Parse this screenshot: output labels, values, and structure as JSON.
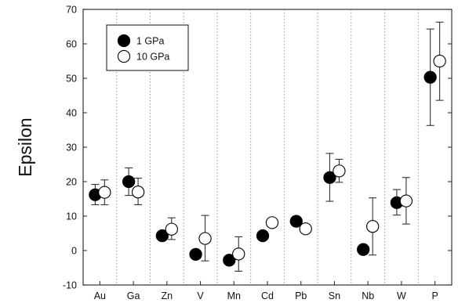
{
  "chart_data": {
    "type": "scatter",
    "title": "",
    "xlabel": "",
    "ylabel": "Epsilon",
    "ylim": [
      -10,
      70
    ],
    "yticks": [
      -10,
      0,
      10,
      20,
      30,
      40,
      50,
      60,
      70
    ],
    "categories": [
      "Au",
      "Ga",
      "Zn",
      "V",
      "Mn",
      "Cd",
      "Pb",
      "Sn",
      "Nb",
      "W",
      "P"
    ],
    "legend_position": "top-left",
    "series": [
      {
        "name": "1 GPa",
        "marker": "filled-circle",
        "color": "#000000",
        "values": [
          16.2,
          20,
          4.3,
          -1.1,
          -2.8,
          4.3,
          8.5,
          21.2,
          0.3,
          13.9,
          50.3
        ],
        "err_low": [
          13.3,
          16,
          3.2,
          -1.1,
          -2.8,
          4.3,
          8.5,
          14.3,
          0.3,
          10.3,
          36.3
        ],
        "err_high": [
          19.2,
          24,
          5.4,
          -1.1,
          -2.8,
          4.3,
          8.5,
          28.2,
          0.3,
          17.7,
          64.3
        ]
      },
      {
        "name": "10 GPa",
        "marker": "open-circle",
        "color": "#ffffff",
        "values": [
          16.9,
          17,
          6.2,
          3.5,
          -1.0,
          8.1,
          6.3,
          23.1,
          7.0,
          14.4,
          55.0
        ],
        "err_low": [
          13.3,
          13.3,
          3.2,
          -3.0,
          -6.0,
          8.1,
          6.3,
          19.8,
          -1.3,
          7.7,
          43.6
        ],
        "err_high": [
          20.5,
          21,
          9.5,
          10.2,
          4.0,
          8.1,
          6.3,
          26.5,
          15.3,
          21.2,
          66.3
        ]
      }
    ]
  }
}
